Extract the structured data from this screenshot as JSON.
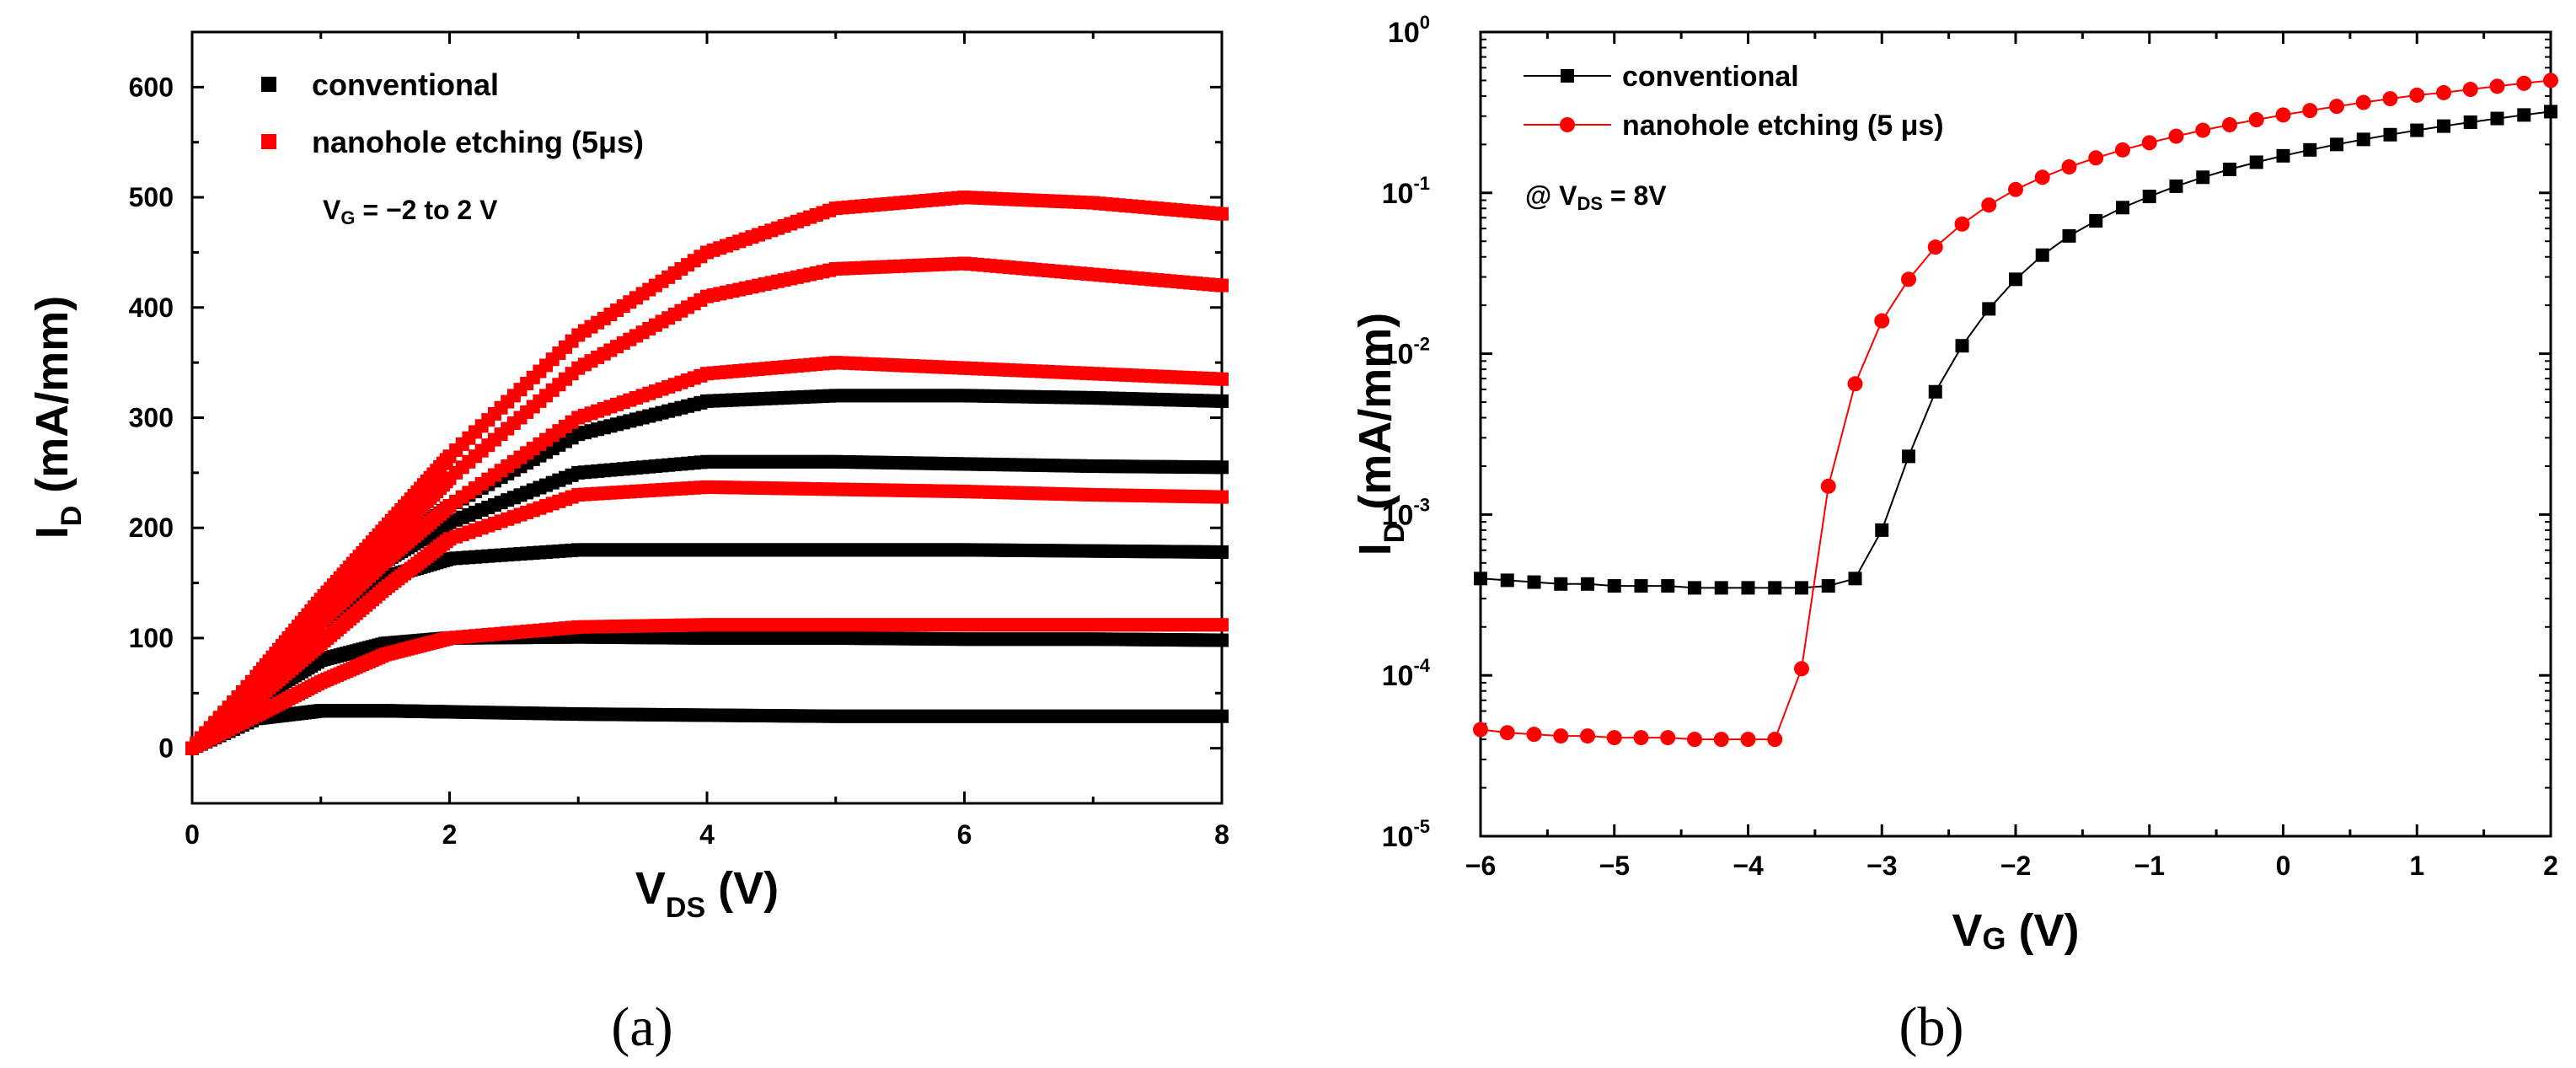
{
  "chart_data": [
    {
      "type": "scatter",
      "panel_label": "(a)",
      "xlabel_main": "V",
      "xlabel_sub": "DS",
      "xlabel_unit": " (V)",
      "ylabel_main": "I",
      "ylabel_sub": "D",
      "ylabel_unit": " (mA/mm)",
      "xlim": [
        0,
        8
      ],
      "ylim": [
        -50,
        650
      ],
      "xticks": [
        0,
        2,
        4,
        6,
        8
      ],
      "yticks": [
        0,
        100,
        200,
        300,
        400,
        500,
        600
      ],
      "grid": false,
      "legend_position": "top-left",
      "legend": [
        {
          "label": "conventional",
          "color": "#000000"
        },
        {
          "label": "nanohole etching (5μs)",
          "color": "#ff0000"
        }
      ],
      "annotation": {
        "main": "V",
        "sub": "G",
        "rest": " = −2 to 2 V"
      },
      "series": [
        {
          "group": "conventional",
          "color": "#000000",
          "x": [
            0,
            0.5,
            1,
            1.5,
            2,
            3,
            4,
            5,
            6,
            7,
            8
          ],
          "y": [
            0,
            27,
            34,
            34,
            33,
            31,
            30,
            29,
            29,
            29,
            29
          ]
        },
        {
          "group": "conventional",
          "color": "#000000",
          "x": [
            0,
            0.5,
            1,
            1.5,
            2,
            3,
            4,
            5,
            6,
            7,
            8
          ],
          "y": [
            0,
            45,
            80,
            95,
            100,
            101,
            100,
            100,
            99,
            99,
            98
          ]
        },
        {
          "group": "conventional",
          "color": "#000000",
          "x": [
            0,
            0.5,
            1,
            1.5,
            2,
            3,
            4,
            5,
            6,
            7,
            8
          ],
          "y": [
            0,
            55,
            115,
            155,
            172,
            180,
            180,
            180,
            180,
            179,
            178
          ]
        },
        {
          "group": "conventional",
          "color": "#000000",
          "x": [
            0,
            0.5,
            1,
            1.5,
            2,
            3,
            4,
            5,
            6,
            7,
            8
          ],
          "y": [
            0,
            58,
            120,
            170,
            205,
            250,
            260,
            260,
            258,
            256,
            255
          ]
        },
        {
          "group": "conventional",
          "color": "#000000",
          "x": [
            0,
            0.5,
            1,
            1.5,
            2,
            3,
            4,
            5,
            6,
            7,
            8
          ],
          "y": [
            0,
            60,
            122,
            175,
            220,
            285,
            315,
            320,
            320,
            318,
            315
          ]
        },
        {
          "group": "nanohole etching (5μs)",
          "color": "#ff0000",
          "x": [
            0,
            0.5,
            1,
            1.5,
            2,
            3,
            4,
            5,
            6,
            7,
            8
          ],
          "y": [
            0,
            30,
            60,
            85,
            100,
            110,
            112,
            112,
            112,
            112,
            112
          ]
        },
        {
          "group": "nanohole etching (5μs)",
          "color": "#ff0000",
          "x": [
            0,
            0.5,
            1,
            1.5,
            2,
            3,
            4,
            5,
            6,
            7,
            8
          ],
          "y": [
            0,
            45,
            95,
            145,
            190,
            230,
            237,
            235,
            233,
            230,
            228
          ]
        },
        {
          "group": "nanohole etching (5μs)",
          "color": "#ff0000",
          "x": [
            0,
            0.5,
            1,
            1.5,
            2,
            3,
            4,
            5,
            6,
            7,
            8
          ],
          "y": [
            0,
            55,
            115,
            170,
            220,
            300,
            340,
            350,
            345,
            340,
            335
          ]
        },
        {
          "group": "nanohole etching (5μs)",
          "color": "#ff0000",
          "x": [
            0,
            0.5,
            1,
            1.5,
            2,
            3,
            4,
            5,
            6,
            7,
            8
          ],
          "y": [
            0,
            60,
            125,
            185,
            245,
            345,
            410,
            435,
            440,
            430,
            420
          ]
        },
        {
          "group": "nanohole etching (5μs)",
          "color": "#ff0000",
          "x": [
            0,
            0.5,
            1,
            1.5,
            2,
            3,
            4,
            5,
            6,
            7,
            8
          ],
          "y": [
            0,
            65,
            135,
            200,
            265,
            375,
            450,
            490,
            500,
            495,
            485
          ]
        }
      ]
    },
    {
      "type": "line",
      "panel_label": "(b)",
      "xlabel_main": "V",
      "xlabel_sub": "G",
      "xlabel_unit": " (V)",
      "ylabel_main": "I",
      "ylabel_sub": "D",
      "ylabel_unit": " (mA/mm)",
      "yscale": "log",
      "xlim": [
        -6,
        2
      ],
      "ylim": [
        1e-05,
        1
      ],
      "xticks": [
        "−6",
        "−5",
        "−4",
        "−3",
        "−2",
        "−1",
        "0",
        "1",
        "2"
      ],
      "xtick_values": [
        -6,
        -5,
        -4,
        -3,
        -2,
        -1,
        0,
        1,
        2
      ],
      "yticks": [
        {
          "base": "10",
          "exp": "-5",
          "value": 1e-05
        },
        {
          "base": "10",
          "exp": "-4",
          "value": 0.0001
        },
        {
          "base": "10",
          "exp": "-3",
          "value": 0.001
        },
        {
          "base": "10",
          "exp": "-2",
          "value": 0.01
        },
        {
          "base": "10",
          "exp": "-1",
          "value": 0.1
        },
        {
          "base": "10",
          "exp": "0",
          "value": 1
        }
      ],
      "grid": false,
      "legend_position": "top-left",
      "legend": [
        {
          "label": "conventional",
          "color": "#000000",
          "marker": "square"
        },
        {
          "label": "nanohole etching (5 μs)",
          "color": "#ff0000",
          "marker": "circle"
        }
      ],
      "annotation": {
        "pre": "@ V",
        "sub": "DS",
        "rest": " = 8V"
      },
      "series": [
        {
          "name": "conventional",
          "color": "#000000",
          "marker": "square",
          "x": [
            -6.0,
            -5.8,
            -5.6,
            -5.4,
            -5.2,
            -5.0,
            -4.8,
            -4.6,
            -4.4,
            -4.2,
            -4.0,
            -3.8,
            -3.6,
            -3.4,
            -3.2,
            -3.0,
            -2.8,
            -2.6,
            -2.4,
            -2.2,
            -2.0,
            -1.8,
            -1.6,
            -1.4,
            -1.2,
            -1.0,
            -0.8,
            -0.6,
            -0.4,
            -0.2,
            0.0,
            0.2,
            0.4,
            0.6,
            0.8,
            1.0,
            1.2,
            1.4,
            1.6,
            1.8,
            2.0
          ],
          "y": [
            0.0004,
            0.00039,
            0.00038,
            0.00037,
            0.00037,
            0.00036,
            0.00036,
            0.00036,
            0.00035,
            0.00035,
            0.00035,
            0.00035,
            0.00035,
            0.00036,
            0.0004,
            0.0008,
            0.0023,
            0.0058,
            0.0112,
            0.019,
            0.029,
            0.041,
            0.054,
            0.067,
            0.081,
            0.095,
            0.11,
            0.125,
            0.14,
            0.155,
            0.17,
            0.185,
            0.2,
            0.215,
            0.23,
            0.245,
            0.26,
            0.275,
            0.29,
            0.305,
            0.32
          ]
        },
        {
          "name": "nanohole etching (5 μs)",
          "color": "#ff0000",
          "marker": "circle",
          "x": [
            -6.0,
            -5.8,
            -5.6,
            -5.4,
            -5.2,
            -5.0,
            -4.8,
            -4.6,
            -4.4,
            -4.2,
            -4.0,
            -3.8,
            -3.6,
            -3.4,
            -3.2,
            -3.0,
            -2.8,
            -2.6,
            -2.4,
            -2.2,
            -2.0,
            -1.8,
            -1.6,
            -1.4,
            -1.2,
            -1.0,
            -0.8,
            -0.6,
            -0.4,
            -0.2,
            0.0,
            0.2,
            0.4,
            0.6,
            0.8,
            1.0,
            1.2,
            1.4,
            1.6,
            1.8,
            2.0
          ],
          "y": [
            4.6e-05,
            4.4e-05,
            4.3e-05,
            4.2e-05,
            4.2e-05,
            4.1e-05,
            4.1e-05,
            4.1e-05,
            4e-05,
            4e-05,
            4e-05,
            4e-05,
            0.00011,
            0.0015,
            0.0065,
            0.016,
            0.029,
            0.046,
            0.064,
            0.084,
            0.105,
            0.125,
            0.145,
            0.165,
            0.185,
            0.205,
            0.225,
            0.245,
            0.265,
            0.285,
            0.305,
            0.325,
            0.345,
            0.365,
            0.385,
            0.405,
            0.42,
            0.44,
            0.46,
            0.48,
            0.5
          ]
        }
      ]
    }
  ]
}
